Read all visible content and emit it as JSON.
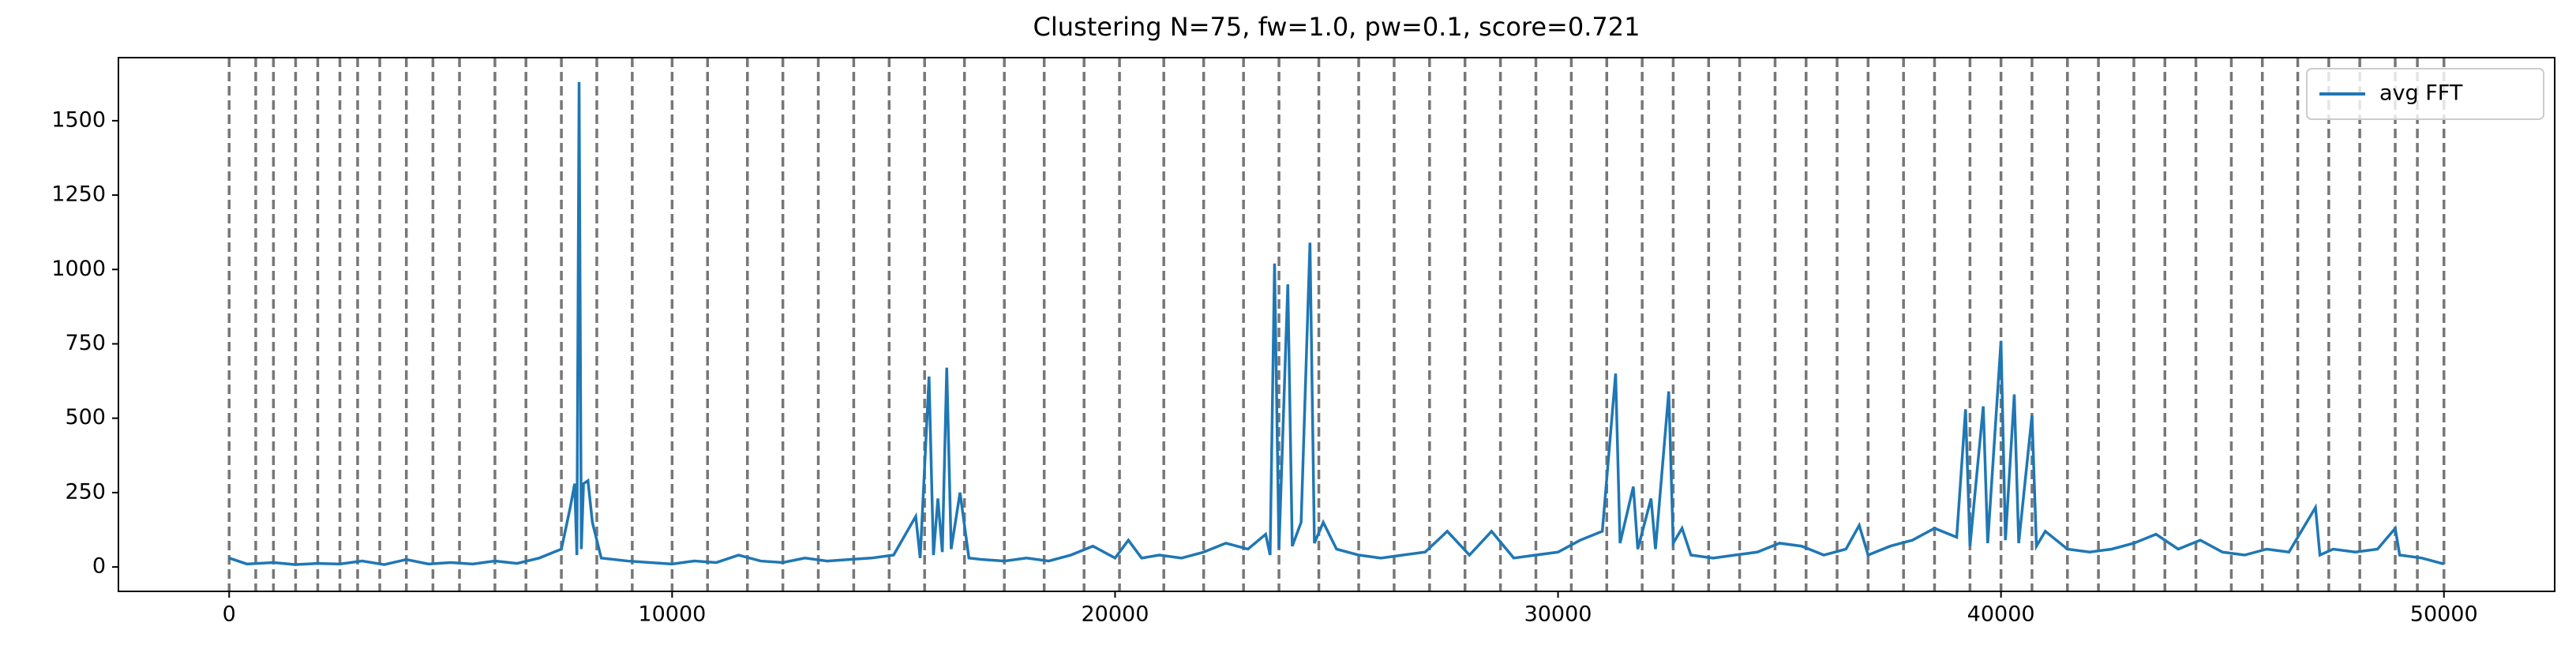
{
  "chart_data": {
    "type": "line",
    "title": "Clustering N=75, fw=1.0, pw=0.1, score=0.721",
    "x": [
      0,
      400,
      1000,
      1500,
      2000,
      2500,
      3000,
      3500,
      4000,
      4500,
      5000,
      5500,
      6000,
      6500,
      7000,
      7500,
      7700,
      7800,
      7850,
      7900,
      7950,
      8000,
      8100,
      8200,
      8400,
      9000,
      9500,
      10000,
      10500,
      11000,
      11500,
      12000,
      12500,
      13000,
      13500,
      14000,
      14500,
      15000,
      15500,
      15600,
      15800,
      15900,
      16000,
      16100,
      16200,
      16300,
      16500,
      16700,
      17000,
      17500,
      18000,
      18500,
      19000,
      19500,
      20000,
      20300,
      20600,
      21000,
      21500,
      22000,
      22500,
      23000,
      23400,
      23500,
      23600,
      23700,
      23900,
      24000,
      24200,
      24400,
      24500,
      24700,
      25000,
      25500,
      26000,
      26500,
      27000,
      27500,
      28000,
      28500,
      29000,
      29500,
      30000,
      30500,
      31000,
      31300,
      31400,
      31700,
      31800,
      32100,
      32200,
      32500,
      32600,
      32800,
      33000,
      33500,
      34000,
      34500,
      35000,
      35500,
      36000,
      36500,
      36800,
      37000,
      37500,
      38000,
      38500,
      39000,
      39200,
      39300,
      39600,
      39700,
      40000,
      40100,
      40300,
      40400,
      40700,
      40800,
      41000,
      41500,
      42000,
      42500,
      43000,
      43500,
      44000,
      44500,
      45000,
      45500,
      46000,
      46500,
      47100,
      47200,
      47500,
      48000,
      48500,
      48900,
      49000,
      49500,
      50000
    ],
    "series": [
      {
        "name": "avg FFT",
        "color": "#1f77b4",
        "values": [
          30,
          10,
          15,
          8,
          12,
          10,
          20,
          8,
          25,
          10,
          15,
          10,
          20,
          12,
          30,
          60,
          200,
          280,
          40,
          1630,
          60,
          280,
          290,
          150,
          30,
          20,
          15,
          10,
          20,
          15,
          40,
          20,
          15,
          30,
          20,
          25,
          30,
          40,
          170,
          30,
          640,
          40,
          230,
          50,
          670,
          60,
          250,
          30,
          25,
          20,
          30,
          20,
          40,
          70,
          30,
          90,
          30,
          40,
          30,
          50,
          80,
          60,
          110,
          40,
          1020,
          60,
          950,
          70,
          150,
          1090,
          80,
          150,
          60,
          40,
          30,
          40,
          50,
          120,
          40,
          120,
          30,
          40,
          50,
          90,
          120,
          650,
          80,
          270,
          60,
          230,
          60,
          590,
          80,
          130,
          40,
          30,
          40,
          50,
          80,
          70,
          40,
          60,
          140,
          40,
          70,
          90,
          130,
          100,
          530,
          70,
          540,
          80,
          760,
          90,
          580,
          80,
          510,
          70,
          120,
          60,
          50,
          60,
          80,
          110,
          60,
          90,
          50,
          40,
          60,
          50,
          200,
          40,
          60,
          50,
          60,
          130,
          40,
          30,
          10
        ]
      }
    ],
    "vlines": {
      "color": "#777777",
      "x": [
        0,
        600,
        1000,
        1500,
        2000,
        2500,
        2900,
        3400,
        4000,
        4600,
        5200,
        6000,
        6700,
        7500,
        8300,
        9100,
        10000,
        10800,
        11700,
        12500,
        13300,
        14100,
        14900,
        15700,
        16600,
        17500,
        18400,
        19300,
        20100,
        21100,
        22000,
        22900,
        23700,
        24600,
        25500,
        26300,
        27100,
        27900,
        28700,
        29500,
        30300,
        31100,
        31900,
        32600,
        33400,
        34100,
        34900,
        35600,
        36300,
        37000,
        37800,
        38500,
        39300,
        40000,
        40700,
        41500,
        42200,
        43000,
        43700,
        44400,
        45200,
        45900,
        46700,
        47400,
        48100,
        48900,
        49400,
        50000
      ]
    },
    "xlim": [
      -2500,
      52500
    ],
    "xticks": [
      0,
      10000,
      20000,
      30000,
      40000,
      50000
    ],
    "ylim": [
      -82,
      1712
    ],
    "yticks": [
      0,
      250,
      500,
      750,
      1000,
      1250,
      1500
    ],
    "legend": "upper right"
  }
}
